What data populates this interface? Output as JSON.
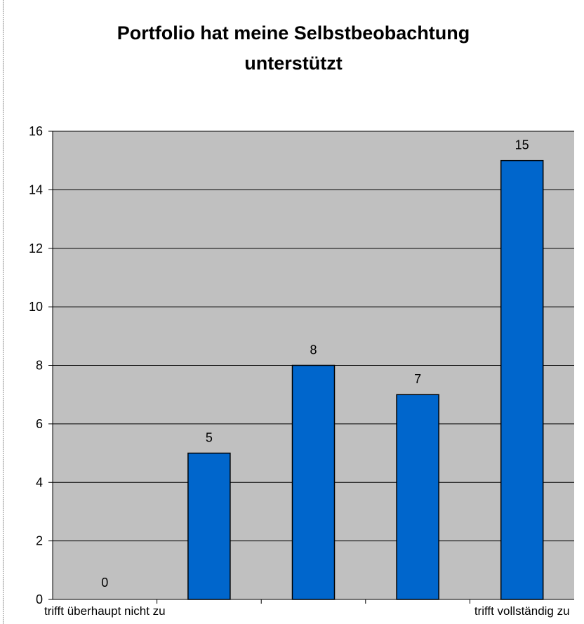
{
  "chart_data": {
    "type": "bar",
    "title": [
      "Portfolio hat meine Selbstbeobachtung",
      "unterstützt"
    ],
    "categories": [
      "trifft überhaupt nicht zu",
      "",
      "",
      "",
      "trifft vollständig zu"
    ],
    "values": [
      0,
      5,
      8,
      7,
      15
    ],
    "data_labels": [
      "0",
      "5",
      "8",
      "7",
      "15"
    ],
    "xlabel": "",
    "ylabel": "",
    "ylim": [
      0,
      16
    ],
    "yticks": [
      0,
      2,
      4,
      6,
      8,
      10,
      12,
      14,
      16
    ],
    "ytick_labels": [
      "0",
      "2",
      "4",
      "6",
      "8",
      "10",
      "12",
      "14",
      "16"
    ],
    "grid": true,
    "legend": "none",
    "colors": {
      "bar": "#0066CC",
      "plot_background": "#C0C0C0",
      "chart_background": "#FFFFFF",
      "gridline": "#000000"
    }
  }
}
